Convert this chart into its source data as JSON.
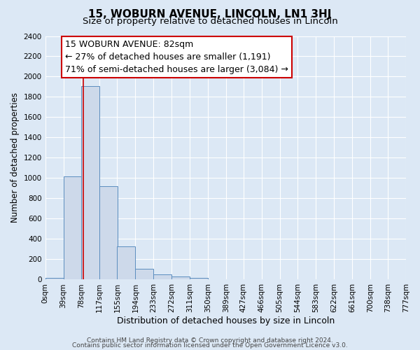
{
  "title": "15, WOBURN AVENUE, LINCOLN, LN1 3HJ",
  "subtitle": "Size of property relative to detached houses in Lincoln",
  "xlabel": "Distribution of detached houses by size in Lincoln",
  "ylabel": "Number of detached properties",
  "bin_labels": [
    "0sqm",
    "39sqm",
    "78sqm",
    "117sqm",
    "155sqm",
    "194sqm",
    "233sqm",
    "272sqm",
    "311sqm",
    "350sqm",
    "389sqm",
    "427sqm",
    "466sqm",
    "505sqm",
    "544sqm",
    "583sqm",
    "622sqm",
    "661sqm",
    "700sqm",
    "738sqm",
    "777sqm"
  ],
  "bin_edges": [
    0,
    39,
    78,
    117,
    155,
    194,
    233,
    272,
    311,
    350,
    389,
    427,
    466,
    505,
    544,
    583,
    622,
    661,
    700,
    738,
    777
  ],
  "bar_heights": [
    20,
    1020,
    1910,
    920,
    325,
    110,
    50,
    30,
    15,
    0,
    0,
    0,
    0,
    0,
    0,
    0,
    0,
    0,
    0,
    0
  ],
  "bar_color": "#cdd9ea",
  "bar_edge_color": "#5b8dbf",
  "property_line_x": 82,
  "property_line_color": "#cc0000",
  "annotation_line1": "15 WOBURN AVENUE: 82sqm",
  "annotation_line2": "← 27% of detached houses are smaller (1,191)",
  "annotation_line3": "71% of semi-detached houses are larger (3,084) →",
  "ylim": [
    0,
    2400
  ],
  "yticks": [
    0,
    200,
    400,
    600,
    800,
    1000,
    1200,
    1400,
    1600,
    1800,
    2000,
    2200,
    2400
  ],
  "background_color": "#dce8f5",
  "plot_bg_color": "#dce8f5",
  "footer_line1": "Contains HM Land Registry data © Crown copyright and database right 2024.",
  "footer_line2": "Contains public sector information licensed under the Open Government Licence v3.0.",
  "grid_color": "#ffffff",
  "title_fontsize": 11,
  "subtitle_fontsize": 9.5,
  "xlabel_fontsize": 9,
  "ylabel_fontsize": 8.5,
  "tick_fontsize": 7.5,
  "annotation_fontsize": 9,
  "footer_fontsize": 6.5
}
